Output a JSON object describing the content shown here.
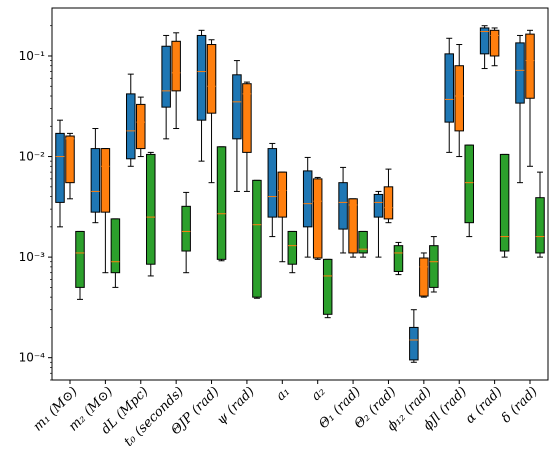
{
  "chart_data": {
    "type": "boxplot",
    "title": "",
    "xlabel": "",
    "ylabel": "",
    "yscale": "log",
    "ylim": [
      6e-05,
      0.3
    ],
    "grid": false,
    "legend": "none",
    "y_ticks": [
      {
        "value": 0.0001,
        "label": "10⁻⁴"
      },
      {
        "value": 0.001,
        "label": "10⁻³"
      },
      {
        "value": 0.01,
        "label": "10⁻²"
      },
      {
        "value": 0.1,
        "label": "10⁻¹"
      }
    ],
    "categories": [
      "m₁ (M⊙)",
      "m₂ (M⊙)",
      "dL (Mpc)",
      "t₀ (seconds)",
      "ΘJP (rad)",
      "ψ (rad)",
      "a₁",
      "a₂",
      "Θ₁ (rad)",
      "Θ₂ (rad)",
      "ϕ₁₂ (rad)",
      "ϕJl (rad)",
      "α (rad)",
      "δ (rad)"
    ],
    "series_colors": [
      "#1f77b4",
      "#ff7f0e",
      "#2ca02c"
    ],
    "median_color": "#ff7f0e",
    "series": [
      {
        "color": "#1f77b4",
        "boxes": [
          {
            "whislo": 0.002,
            "q1": 0.0035,
            "med": 0.01,
            "q3": 0.017,
            "whishi": 0.023
          },
          {
            "whislo": 0.0022,
            "q1": 0.0028,
            "med": 0.0045,
            "q3": 0.012,
            "whishi": 0.019
          },
          {
            "whislo": 0.008,
            "q1": 0.0095,
            "med": 0.018,
            "q3": 0.042,
            "whishi": 0.066
          },
          {
            "whislo": 0.015,
            "q1": 0.031,
            "med": 0.045,
            "q3": 0.125,
            "whishi": 0.16
          },
          {
            "whislo": 0.009,
            "q1": 0.023,
            "med": 0.07,
            "q3": 0.16,
            "whishi": 0.18
          },
          {
            "whislo": 0.0045,
            "q1": 0.015,
            "med": 0.035,
            "q3": 0.065,
            "whishi": 0.09
          },
          {
            "whislo": 0.0016,
            "q1": 0.0025,
            "med": 0.004,
            "q3": 0.012,
            "whishi": 0.0135
          },
          {
            "whislo": 0.001,
            "q1": 0.002,
            "med": 0.0034,
            "q3": 0.0072,
            "whishi": 0.0098
          },
          {
            "whislo": 0.0011,
            "q1": 0.0019,
            "med": 0.0035,
            "q3": 0.0055,
            "whishi": 0.0078
          },
          {
            "whislo": 0.001,
            "q1": 0.0025,
            "med": 0.0035,
            "q3": 0.0042,
            "whishi": 0.0045
          },
          {
            "whislo": 9e-05,
            "q1": 9.5e-05,
            "med": 0.00015,
            "q3": 0.0002,
            "whishi": 0.0003
          },
          {
            "whislo": 0.011,
            "q1": 0.022,
            "med": 0.037,
            "q3": 0.105,
            "whishi": 0.15
          },
          {
            "whislo": 0.075,
            "q1": 0.105,
            "med": 0.175,
            "q3": 0.19,
            "whishi": 0.2
          },
          {
            "whislo": 0.0055,
            "q1": 0.034,
            "med": 0.072,
            "q3": 0.135,
            "whishi": 0.16
          }
        ]
      },
      {
        "color": "#ff7f0e",
        "boxes": [
          {
            "whislo": 0.0038,
            "q1": 0.0055,
            "med": 0.015,
            "q3": 0.016,
            "whishi": 0.017
          },
          {
            "whislo": 0.0007,
            "q1": 0.0028,
            "med": 0.008,
            "q3": 0.012,
            "whishi": 0.012
          },
          {
            "whislo": 0.01,
            "q1": 0.012,
            "med": 0.022,
            "q3": 0.033,
            "whishi": 0.039
          },
          {
            "whislo": 0.019,
            "q1": 0.045,
            "med": 0.068,
            "q3": 0.14,
            "whishi": 0.17
          },
          {
            "whislo": 0.0055,
            "q1": 0.027,
            "med": 0.05,
            "q3": 0.13,
            "whishi": 0.145
          },
          {
            "whislo": 0.0045,
            "q1": 0.011,
            "med": 0.042,
            "q3": 0.053,
            "whishi": 0.055
          },
          {
            "whislo": 0.0009,
            "q1": 0.0025,
            "med": 0.0046,
            "q3": 0.007,
            "whishi": 0.007
          },
          {
            "whislo": 0.00095,
            "q1": 0.00098,
            "med": 0.0036,
            "q3": 0.006,
            "whishi": 0.0062
          },
          {
            "whislo": 0.001,
            "q1": 0.0011,
            "med": 0.0033,
            "q3": 0.0038,
            "whishi": 0.0038
          },
          {
            "whislo": 0.0022,
            "q1": 0.0024,
            "med": 0.0031,
            "q3": 0.005,
            "whishi": 0.0075
          },
          {
            "whislo": 0.0004,
            "q1": 0.00041,
            "med": 0.0008,
            "q3": 0.00098,
            "whishi": 0.0011
          },
          {
            "whislo": 0.01,
            "q1": 0.018,
            "med": 0.04,
            "q3": 0.08,
            "whishi": 0.13
          },
          {
            "whislo": 0.08,
            "q1": 0.1,
            "med": 0.16,
            "q3": 0.18,
            "whishi": 0.19
          },
          {
            "whislo": 0.008,
            "q1": 0.038,
            "med": 0.09,
            "q3": 0.165,
            "whishi": 0.18
          }
        ]
      },
      {
        "color": "#2ca02c",
        "boxes": [
          {
            "whislo": 0.00038,
            "q1": 0.0005,
            "med": 0.0011,
            "q3": 0.0018,
            "whishi": 0.0018
          },
          {
            "whislo": 0.0005,
            "q1": 0.0007,
            "med": 0.0009,
            "q3": 0.0024,
            "whishi": 0.0024
          },
          {
            "whislo": 0.00065,
            "q1": 0.00085,
            "med": 0.0025,
            "q3": 0.0105,
            "whishi": 0.011
          },
          {
            "whislo": 0.0007,
            "q1": 0.00115,
            "med": 0.0018,
            "q3": 0.0032,
            "whishi": 0.0044
          },
          {
            "whislo": 0.00092,
            "q1": 0.00095,
            "med": 0.0027,
            "q3": 0.0125,
            "whishi": 0.0125
          },
          {
            "whislo": 0.00039,
            "q1": 0.0004,
            "med": 0.0021,
            "q3": 0.0058,
            "whishi": 0.0058
          },
          {
            "whislo": 0.0007,
            "q1": 0.00085,
            "med": 0.0013,
            "q3": 0.0018,
            "whishi": 0.0018
          },
          {
            "whislo": 0.00025,
            "q1": 0.00027,
            "med": 0.00065,
            "q3": 0.00095,
            "whishi": 0.00095
          },
          {
            "whislo": 0.001,
            "q1": 0.0011,
            "med": 0.0012,
            "q3": 0.0018,
            "whishi": 0.0018
          },
          {
            "whislo": 0.00067,
            "q1": 0.00072,
            "med": 0.0011,
            "q3": 0.0013,
            "whishi": 0.0014
          },
          {
            "whislo": 0.00045,
            "q1": 0.0005,
            "med": 0.0009,
            "q3": 0.0013,
            "whishi": 0.0016
          },
          {
            "whislo": 0.0016,
            "q1": 0.0022,
            "med": 0.0055,
            "q3": 0.013,
            "whishi": 0.013
          },
          {
            "whislo": 0.001,
            "q1": 0.00115,
            "med": 0.0016,
            "q3": 0.0105,
            "whishi": 0.0105
          },
          {
            "whislo": 0.001,
            "q1": 0.0011,
            "med": 0.0016,
            "q3": 0.0039,
            "whishi": 0.007
          }
        ]
      }
    ]
  }
}
